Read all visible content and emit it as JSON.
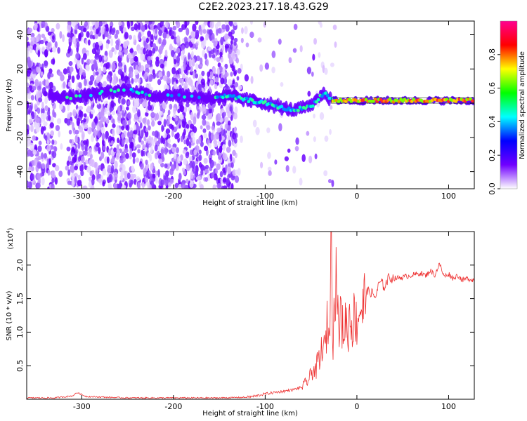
{
  "title": "C2E2.2023.217.18.43.G29",
  "chart_data": [
    {
      "type": "heatmap",
      "xlabel": "Height of straight line (km)",
      "ylabel": "Frequency (Hz)",
      "xlim": [
        -360,
        128
      ],
      "ylim": [
        -50,
        48
      ],
      "xticks": [
        -300,
        -200,
        -100,
        0,
        100
      ],
      "xtick_labels": [
        "-300",
        "-200",
        "-100",
        "0",
        "100"
      ],
      "yticks": [
        -40,
        -20,
        0,
        20,
        40
      ],
      "ytick_labels": [
        "-40",
        "-20",
        "0",
        "20",
        "40"
      ],
      "grid": false,
      "colorbar": {
        "label": "Normalized spectral amplitude",
        "range": [
          0,
          1
        ],
        "ticks": [
          0.0,
          0.2,
          0.4,
          0.6,
          0.8
        ],
        "tick_labels": [
          "0.0",
          "0.2",
          "0.4",
          "0.6",
          "0.8"
        ],
        "colors": [
          "#ffffff",
          "#7000ff",
          "#0000ff",
          "#00ffff",
          "#00ff00",
          "#ffff00",
          "#ff0000",
          "#ff0090"
        ]
      },
      "ridge": {
        "x": [
          -330,
          -310,
          -280,
          -250,
          -220,
          -200,
          -180,
          -160,
          -140,
          -120,
          -100,
          -80,
          -70,
          -60,
          -50,
          -40,
          -35,
          -30,
          -25,
          0,
          50,
          100,
          128
        ],
        "y": [
          4,
          3,
          6,
          8,
          4,
          5,
          4,
          3,
          4,
          2,
          0,
          -3,
          -4,
          -3,
          -2,
          4,
          6,
          3,
          1.5,
          1.5,
          1.5,
          1.5,
          1.5
        ]
      }
    },
    {
      "type": "line",
      "xlabel": "Height of straight line (km)",
      "ylabel": "SNR (10 * v/v)",
      "scale_label": "(x10",
      "scale_exponent": "4",
      "xlim": [
        -360,
        128
      ],
      "ylim": [
        0,
        2.5
      ],
      "xticks": [
        -300,
        -200,
        -100,
        0,
        100
      ],
      "xtick_labels": [
        "-300",
        "-200",
        "-100",
        "0",
        "100"
      ],
      "yticks": [
        0.5,
        1.0,
        1.5,
        2.0
      ],
      "ytick_labels": [
        "0.5",
        "1.0",
        "1.5",
        "2.0"
      ],
      "grid": false,
      "series": [
        {
          "color": "#ee3333",
          "x": [
            -360,
            -330,
            -310,
            -305,
            -295,
            -250,
            -200,
            -150,
            -120,
            -110,
            -100,
            -90,
            -80,
            -70,
            -60,
            -52,
            -48,
            -45,
            -42,
            -40,
            -38,
            -35,
            -32,
            -30,
            -28,
            -26,
            -25,
            -24,
            -22,
            -20,
            -18,
            -15,
            -12,
            -10,
            -8,
            -5,
            -2,
            0,
            3,
            6,
            10,
            15,
            20,
            25,
            30,
            35,
            40,
            50,
            60,
            70,
            75,
            80,
            85,
            90,
            95,
            100,
            105,
            110,
            115,
            120,
            128
          ],
          "y": [
            0.02,
            0.02,
            0.05,
            0.1,
            0.04,
            0.02,
            0.02,
            0.02,
            0.03,
            0.05,
            0.08,
            0.1,
            0.12,
            0.14,
            0.18,
            0.3,
            0.45,
            0.4,
            0.6,
            0.5,
            0.85,
            0.7,
            1.2,
            0.9,
            2.48,
            0.8,
            2.3,
            1.0,
            2.25,
            0.9,
            1.3,
            1.0,
            1.2,
            0.95,
            1.25,
            1.1,
            1.3,
            1.1,
            1.4,
            1.3,
            1.6,
            1.6,
            1.52,
            1.75,
            1.68,
            1.82,
            1.8,
            1.82,
            1.85,
            1.88,
            1.84,
            1.92,
            1.85,
            2.02,
            1.83,
            1.87,
            1.8,
            1.85,
            1.77,
            1.8,
            1.78
          ]
        }
      ]
    }
  ]
}
